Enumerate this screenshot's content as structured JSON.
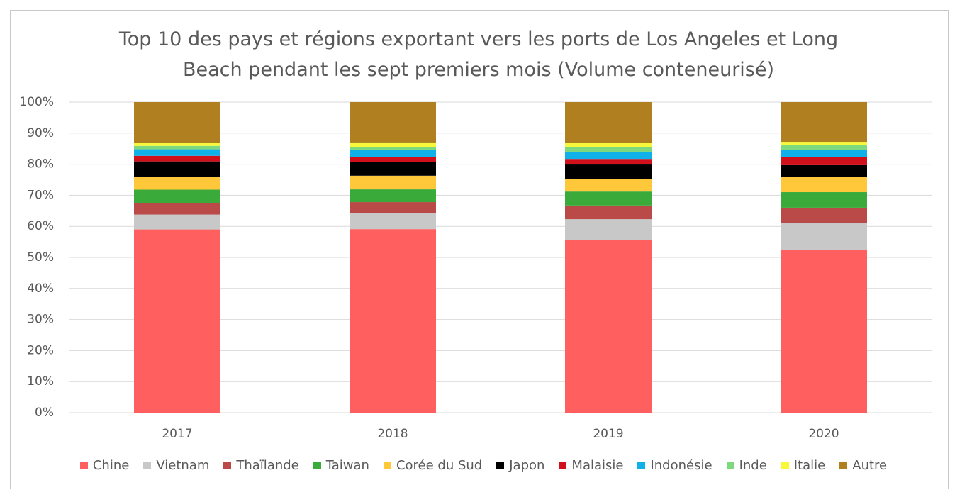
{
  "chart_data": {
    "type": "stacked-bar",
    "title": "Top 10 des pays et régions exportant vers les ports de Los Angeles et Long Beach pendant les sept premiers mois (Volume conteneurisé)",
    "categories": [
      "2017",
      "2018",
      "2019",
      "2020"
    ],
    "series": [
      {
        "name": "Chine",
        "color": "#ff5f5f",
        "values": [
          59.0,
          59.1,
          55.7,
          52.5
        ]
      },
      {
        "name": "Vietnam",
        "color": "#c8c8c8",
        "values": [
          4.8,
          5.1,
          6.6,
          8.5
        ]
      },
      {
        "name": "Thaïlande",
        "color": "#b94a48",
        "values": [
          3.7,
          3.6,
          4.4,
          5.0
        ]
      },
      {
        "name": "Taiwan",
        "color": "#3aaa3a",
        "values": [
          4.3,
          4.1,
          4.5,
          5.0
        ]
      },
      {
        "name": "Corée du Sud",
        "color": "#ffc83a",
        "values": [
          4.1,
          4.4,
          4.1,
          4.8
        ]
      },
      {
        "name": "Japon",
        "color": "#000000",
        "values": [
          5.0,
          4.5,
          4.6,
          3.9
        ]
      },
      {
        "name": "Malaisie",
        "color": "#d0101a",
        "values": [
          1.8,
          1.6,
          1.8,
          2.5
        ]
      },
      {
        "name": "Indonésie",
        "color": "#10b0e8",
        "values": [
          2.1,
          2.1,
          2.3,
          2.3
        ]
      },
      {
        "name": "Inde",
        "color": "#7ed87e",
        "values": [
          1.1,
          1.1,
          1.4,
          1.6
        ]
      },
      {
        "name": "Italie",
        "color": "#f8f83a",
        "values": [
          1.0,
          1.4,
          1.4,
          1.1
        ]
      },
      {
        "name": "Autre",
        "color": "#b08020",
        "values": [
          13.1,
          13.0,
          13.2,
          12.8
        ]
      }
    ],
    "ylim": [
      0,
      100
    ],
    "yticks": [
      {
        "value": 0,
        "label": "0%"
      },
      {
        "value": 10,
        "label": "10%"
      },
      {
        "value": 20,
        "label": "20%"
      },
      {
        "value": 30,
        "label": "30%"
      },
      {
        "value": 40,
        "label": "40%"
      },
      {
        "value": 50,
        "label": "50%"
      },
      {
        "value": 60,
        "label": "60%"
      },
      {
        "value": 70,
        "label": "70%"
      },
      {
        "value": 80,
        "label": "80%"
      },
      {
        "value": 90,
        "label": "90%"
      },
      {
        "value": 100,
        "label": "100%"
      }
    ],
    "grid": true
  }
}
